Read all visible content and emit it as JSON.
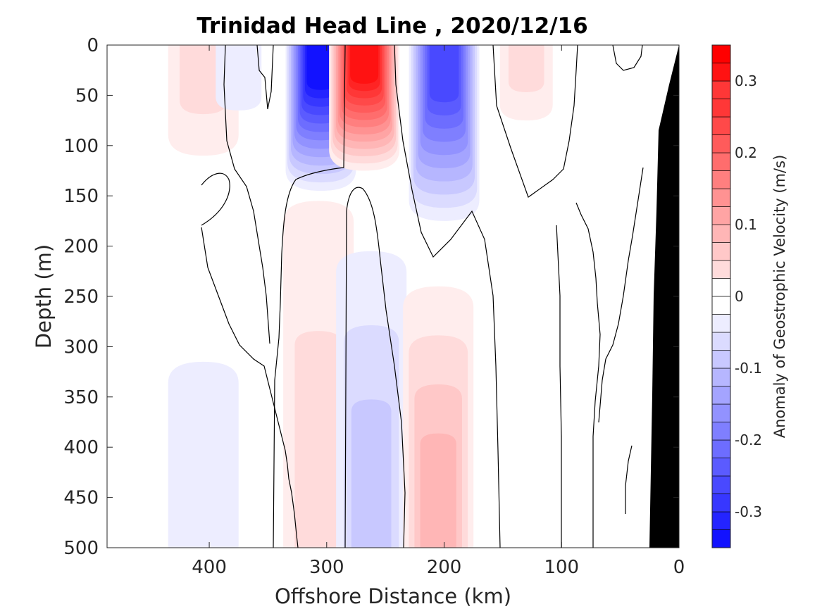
{
  "chart_data": {
    "type": "heatmap",
    "title": "Trinidad Head Line , 2020/12/16",
    "xlabel": "Offshore Distance (km)",
    "ylabel": "Depth (m)",
    "xlim": [
      487,
      0
    ],
    "x_reversed": true,
    "ylim": [
      0,
      500
    ],
    "y_reversed": true,
    "xticks": [
      "400",
      "300",
      "200",
      "100",
      "0"
    ],
    "xtick_values": [
      400,
      300,
      200,
      100,
      0
    ],
    "yticks": [
      "0",
      "50",
      "100",
      "150",
      "200",
      "250",
      "300",
      "350",
      "400",
      "450",
      "500"
    ],
    "ytick_values": [
      0,
      50,
      100,
      150,
      200,
      250,
      300,
      350,
      400,
      450,
      500
    ],
    "colorbar": {
      "label": "Anomaly of Geostrophic Velocity (m/s)",
      "range": [
        -0.35,
        0.35
      ],
      "step": 0.025,
      "ticks": [
        "0.3",
        "0.2",
        "0.1",
        "0",
        "-0.1",
        "-0.2",
        "-0.3"
      ],
      "tick_values": [
        0.3,
        0.2,
        0.1,
        0,
        -0.1,
        -0.2,
        -0.3
      ],
      "low_color": "#0000ff",
      "mid_color": "#ffffff",
      "high_color": "#ff0000"
    },
    "bathymetry_color": "#000000",
    "features": [
      {
        "kind": "positive",
        "x": 405,
        "depth_top": 0,
        "depth_bottom": 110,
        "peak": 0.06
      },
      {
        "kind": "negative",
        "x": 375,
        "depth_top": 0,
        "depth_bottom": 65,
        "peak": -0.03
      },
      {
        "kind": "negative",
        "x": 305,
        "depth_top": 0,
        "depth_bottom": 145,
        "peak": -0.32
      },
      {
        "kind": "positive",
        "x": 268,
        "depth_top": 0,
        "depth_bottom": 125,
        "peak": 0.33
      },
      {
        "kind": "negative",
        "x": 200,
        "depth_top": 0,
        "depth_bottom": 175,
        "peak": -0.26
      },
      {
        "kind": "positive",
        "x": 130,
        "depth_top": 0,
        "depth_bottom": 75,
        "peak": 0.06
      },
      {
        "kind": "positive",
        "x": 307,
        "depth_top": 155,
        "depth_bottom": 500,
        "peak": 0.06
      },
      {
        "kind": "negative",
        "x": 262,
        "depth_top": 205,
        "depth_bottom": 500,
        "peak": -0.07
      },
      {
        "kind": "positive",
        "x": 205,
        "depth_top": 240,
        "depth_bottom": 500,
        "peak": 0.1
      },
      {
        "kind": "negative",
        "x": 405,
        "depth_top": 315,
        "depth_bottom": 500,
        "peak": -0.03
      }
    ]
  }
}
